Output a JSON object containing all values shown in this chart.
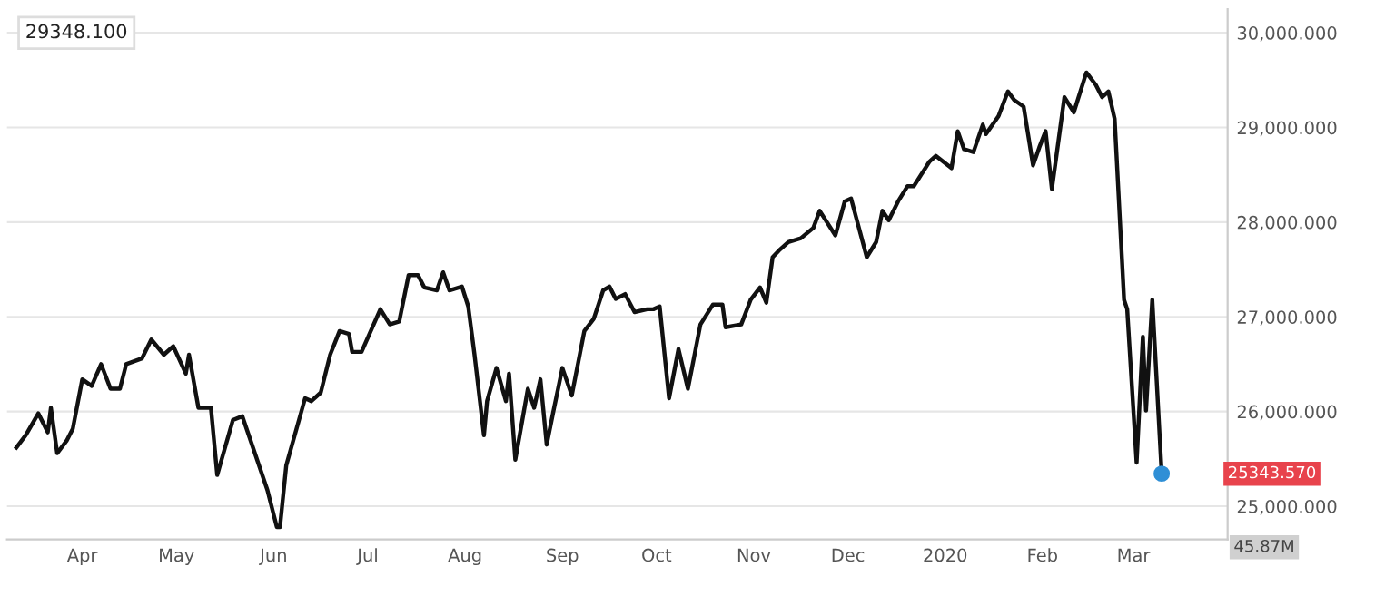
{
  "chart_data": {
    "type": "line",
    "grid": "y",
    "marker": "none",
    "line_style": "solid",
    "ylim": [
      24650,
      30250
    ],
    "yticks": [
      {
        "value": 25000,
        "label": "25,000.000"
      },
      {
        "value": 26000,
        "label": "26,000.000"
      },
      {
        "value": 27000,
        "label": "27,000.000"
      },
      {
        "value": 28000,
        "label": "28,000.000"
      },
      {
        "value": 29000,
        "label": "29,000.000"
      },
      {
        "value": 30000,
        "label": "30,000.000"
      }
    ],
    "xlim": [
      "2019-03-08",
      "2020-03-31"
    ],
    "xticks": [
      {
        "value": "2019-04-01",
        "label": "Apr"
      },
      {
        "value": "2019-05-01",
        "label": "May"
      },
      {
        "value": "2019-06-01",
        "label": "Jun"
      },
      {
        "value": "2019-07-01",
        "label": "Jul"
      },
      {
        "value": "2019-08-01",
        "label": "Aug"
      },
      {
        "value": "2019-09-01",
        "label": "Sep"
      },
      {
        "value": "2019-10-01",
        "label": "Oct"
      },
      {
        "value": "2019-11-01",
        "label": "Nov"
      },
      {
        "value": "2019-12-01",
        "label": "Dec"
      },
      {
        "value": "2020-01-01",
        "label": "2020"
      },
      {
        "value": "2020-02-01",
        "label": "Feb"
      },
      {
        "value": "2020-03-01",
        "label": "Mar"
      }
    ],
    "annotations": [
      "29348.100",
      "25343.570",
      "45.87M"
    ],
    "series": [
      {
        "color": "#111111",
        "x": [
          "2019-03-11",
          "2019-03-14",
          "2019-03-18",
          "2019-03-21",
          "2019-03-22",
          "2019-03-24",
          "2019-03-27",
          "2019-03-29",
          "2019-04-01",
          "2019-04-04",
          "2019-04-07",
          "2019-04-10",
          "2019-04-13",
          "2019-04-15",
          "2019-04-20",
          "2019-04-23",
          "2019-04-27",
          "2019-04-30",
          "2019-05-04",
          "2019-05-05",
          "2019-05-08",
          "2019-05-12",
          "2019-05-14",
          "2019-05-19",
          "2019-05-22",
          "2019-05-26",
          "2019-05-30",
          "2019-06-02",
          "2019-06-03",
          "2019-06-05",
          "2019-06-11",
          "2019-06-13",
          "2019-06-16",
          "2019-06-19",
          "2019-06-22",
          "2019-06-25",
          "2019-06-26",
          "2019-06-29",
          "2019-07-05",
          "2019-07-08",
          "2019-07-11",
          "2019-07-14",
          "2019-07-17",
          "2019-07-19",
          "2019-07-23",
          "2019-07-25",
          "2019-07-27",
          "2019-07-31",
          "2019-08-02",
          "2019-08-04",
          "2019-08-07",
          "2019-08-08",
          "2019-08-11",
          "2019-08-14",
          "2019-08-15",
          "2019-08-17",
          "2019-08-21",
          "2019-08-23",
          "2019-08-25",
          "2019-08-27",
          "2019-08-29",
          "2019-09-01",
          "2019-09-04",
          "2019-09-08",
          "2019-09-11",
          "2019-09-14",
          "2019-09-16",
          "2019-09-18",
          "2019-09-21",
          "2019-09-24",
          "2019-09-28",
          "2019-09-30",
          "2019-10-02",
          "2019-10-05",
          "2019-10-08",
          "2019-10-11",
          "2019-10-15",
          "2019-10-19",
          "2019-10-22",
          "2019-10-23",
          "2019-10-28",
          "2019-10-31",
          "2019-11-03",
          "2019-11-05",
          "2019-11-07",
          "2019-11-09",
          "2019-11-12",
          "2019-11-16",
          "2019-11-20",
          "2019-11-22",
          "2019-11-27",
          "2019-11-30",
          "2019-12-02",
          "2019-12-07",
          "2019-12-10",
          "2019-12-12",
          "2019-12-14",
          "2019-12-17",
          "2019-12-20",
          "2019-12-22",
          "2019-12-27",
          "2019-12-29",
          "2020-01-03",
          "2020-01-05",
          "2020-01-07",
          "2020-01-10",
          "2020-01-13",
          "2020-01-14",
          "2020-01-18",
          "2020-01-21",
          "2020-01-23",
          "2020-01-26",
          "2020-01-29",
          "2020-01-31",
          "2020-02-02",
          "2020-02-04",
          "2020-02-08",
          "2020-02-11",
          "2020-02-15",
          "2020-02-18",
          "2020-02-20",
          "2020-02-22",
          "2020-02-24",
          "2020-02-27",
          "2020-02-28",
          "2020-03-02",
          "2020-03-04",
          "2020-03-05",
          "2020-03-07",
          "2020-03-10"
        ],
        "values": [
          25620,
          25750,
          25980,
          25780,
          26040,
          25560,
          25690,
          25820,
          26340,
          26270,
          26500,
          26240,
          26240,
          26500,
          26560,
          26760,
          26600,
          26690,
          26400,
          26600,
          26040,
          26040,
          25330,
          25910,
          25950,
          25560,
          25170,
          24780,
          24780,
          25430,
          26140,
          26110,
          26200,
          26600,
          26850,
          26820,
          26630,
          26630,
          27080,
          26920,
          26950,
          27440,
          27440,
          27310,
          27280,
          27470,
          27280,
          27320,
          27110,
          26600,
          25750,
          26110,
          26460,
          26110,
          26400,
          25490,
          26240,
          26040,
          26340,
          25650,
          25980,
          26460,
          26170,
          26850,
          26980,
          27280,
          27320,
          27190,
          27240,
          27050,
          27080,
          27080,
          27110,
          26140,
          26660,
          26240,
          26920,
          27130,
          27130,
          26890,
          26920,
          27180,
          27310,
          27150,
          27630,
          27700,
          27790,
          27830,
          27940,
          28120,
          27860,
          28220,
          28250,
          27630,
          27790,
          28120,
          28020,
          28220,
          28380,
          28380,
          28640,
          28700,
          28570,
          28960,
          28770,
          28740,
          29030,
          28930,
          29120,
          29380,
          29290,
          29220,
          28600,
          28790,
          28960,
          28350,
          29320,
          29160,
          29580,
          29450,
          29320,
          29380,
          29090,
          27180,
          27080,
          25460,
          26790,
          26010,
          27180,
          25343.57
        ]
      },
      {
        "type": "scatter",
        "color": "#2f8fd6",
        "marker": "circle",
        "x": [
          "2020-03-10"
        ],
        "values": [
          25343.57
        ]
      }
    ]
  }
}
